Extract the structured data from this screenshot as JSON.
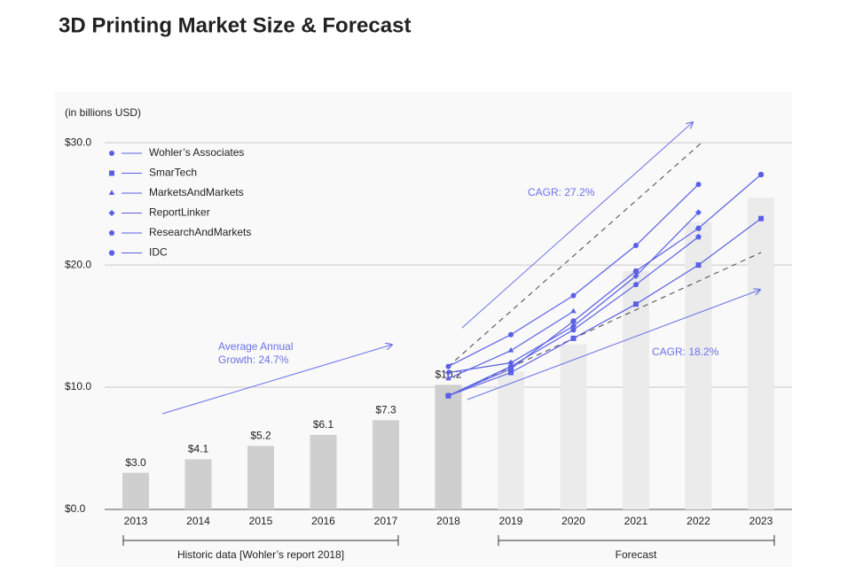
{
  "chart_data": {
    "type": "bar",
    "title": "3D Printing Market Size & Forecast",
    "subtitle": "(in billions USD)",
    "categories": [
      "2013",
      "2014",
      "2015",
      "2016",
      "2017",
      "2018",
      "2019",
      "2020",
      "2021",
      "2022",
      "2023"
    ],
    "values": [
      3.0,
      4.1,
      5.2,
      6.1,
      7.3,
      10.2,
      11.3,
      13.5,
      19.5,
      23.5,
      25.5
    ],
    "value_labels": [
      "$3.0",
      "$4.1",
      "$5.2",
      "$6.1",
      "$7.3",
      "$10.2",
      null,
      null,
      null,
      null,
      null
    ],
    "colors": [
      "#cfcfcf",
      "#cfcfcf",
      "#cfcfcf",
      "#cfcfcf",
      "#cfcfcf",
      "#cfcfcf",
      "#ebebeb",
      "#ebebeb",
      "#ebebeb",
      "#ebebeb",
      "#ebebeb"
    ],
    "ylim": [
      0,
      34
    ],
    "yticks": [
      {
        "value": 0,
        "label": "$0.0"
      },
      {
        "value": 10,
        "label": "$10.0"
      },
      {
        "value": 20,
        "label": "$20.0"
      },
      {
        "value": 30,
        "label": "$30.0"
      }
    ],
    "grid": true,
    "legend": "top-left",
    "series": [
      {
        "name": "Wohler’s Associates",
        "type": "line",
        "marker": "circle",
        "color": "#5a60e6",
        "values": [
          null,
          null,
          null,
          null,
          null,
          11.7,
          14.3,
          17.5,
          21.6,
          26.6,
          null
        ]
      },
      {
        "name": "SmarTech",
        "type": "line",
        "marker": "square",
        "color": "#5a60e6",
        "values": [
          null,
          null,
          null,
          null,
          null,
          9.3,
          11.2,
          14.0,
          16.8,
          20.0,
          23.8
        ]
      },
      {
        "name": "MarketsAndMarkets",
        "type": "line",
        "marker": "triangle",
        "color": "#5a60e6",
        "values": [
          null,
          null,
          null,
          null,
          null,
          10.7,
          13.0,
          16.2,
          null,
          null,
          null
        ]
      },
      {
        "name": "ReportLinker",
        "type": "line",
        "marker": "diamond",
        "color": "#5a60e6",
        "values": [
          null,
          null,
          null,
          null,
          null,
          11.2,
          12.0,
          15.0,
          19.1,
          24.3,
          null
        ]
      },
      {
        "name": "ResearchAndMarkets",
        "type": "line",
        "marker": "pentagon",
        "color": "#5a60e6",
        "values": [
          null,
          null,
          null,
          null,
          null,
          9.3,
          11.7,
          14.7,
          18.4,
          22.3,
          null
        ]
      },
      {
        "name": "IDC",
        "type": "line",
        "marker": "hexagon",
        "color": "#5a60e6",
        "values": [
          null,
          null,
          null,
          null,
          null,
          9.3,
          11.5,
          15.4,
          19.5,
          23.0,
          27.4
        ]
      }
    ],
    "annotations": [
      "Average Annual",
      "Growth: 24.7%",
      "CAGR: 27.2%",
      "CAGR: 18.2%",
      "Historic data [Wohler’s report 2018]",
      "Forecast"
    ]
  }
}
